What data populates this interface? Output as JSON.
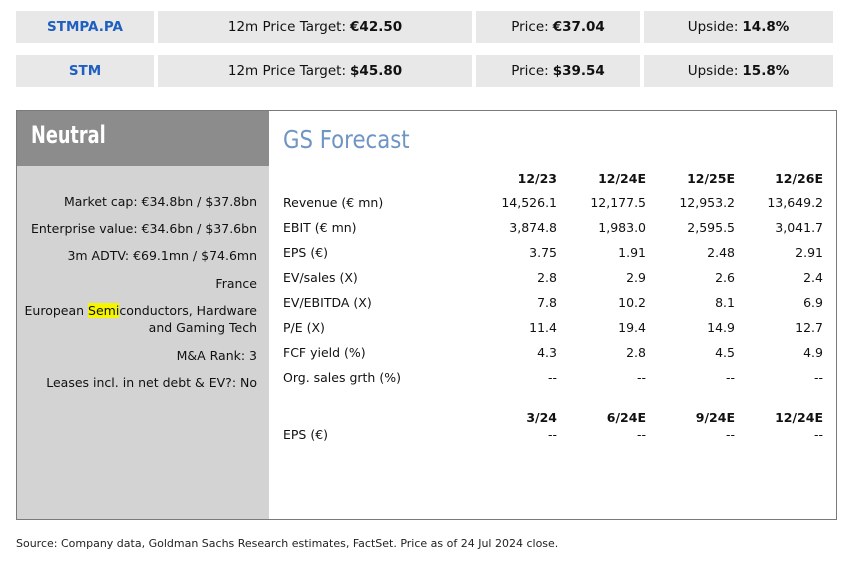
{
  "tickers": [
    {
      "symbol": "STMPA.PA",
      "target_label": "12m Price Target:",
      "target_value": "€42.50",
      "price_label": "Price:",
      "price_value": "€37.04",
      "upside_label": "Upside:",
      "upside_value": "14.8%"
    },
    {
      "symbol": "STM",
      "target_label": "12m Price Target:",
      "target_value": "$45.80",
      "price_label": "Price:",
      "price_value": "$39.54",
      "upside_label": "Upside:",
      "upside_value": "15.8%"
    }
  ],
  "rating": "Neutral",
  "meta": {
    "market_cap": "Market cap: €34.8bn / $37.8bn",
    "enterprise_value": "Enterprise value: €34.6bn / $37.6bn",
    "adtv": "3m ADTV: €69.1mn / $74.6mn",
    "country": "France",
    "sector_pre": "European ",
    "sector_highlight": "Semi",
    "sector_post": "conductors, Hardware",
    "sector_line2": "and Gaming Tech",
    "ma_rank": "M&A Rank: 3",
    "leases": "Leases incl. in net debt & EV?: No"
  },
  "forecast": {
    "title": "GS Forecast",
    "annual_headers": [
      "12/23",
      "12/24E",
      "12/25E",
      "12/26E"
    ],
    "annual_rows": [
      {
        "label": "Revenue (€ mn)",
        "values": [
          "14,526.1",
          "12,177.5",
          "12,953.2",
          "13,649.2"
        ]
      },
      {
        "label": "EBIT (€ mn)",
        "values": [
          "3,874.8",
          "1,983.0",
          "2,595.5",
          "3,041.7"
        ]
      },
      {
        "label": "EPS (€)",
        "values": [
          "3.75",
          "1.91",
          "2.48",
          "2.91"
        ]
      },
      {
        "label": "EV/sales (X)",
        "values": [
          "2.8",
          "2.9",
          "2.6",
          "2.4"
        ]
      },
      {
        "label": "EV/EBITDA (X)",
        "values": [
          "7.8",
          "10.2",
          "8.1",
          "6.9"
        ]
      },
      {
        "label": "P/E (X)",
        "values": [
          "11.4",
          "19.4",
          "14.9",
          "12.7"
        ]
      },
      {
        "label": "FCF yield (%)",
        "values": [
          "4.3",
          "2.8",
          "4.5",
          "4.9"
        ]
      },
      {
        "label": "Org. sales grth (%)",
        "values": [
          "--",
          "--",
          "--",
          "--"
        ]
      }
    ],
    "quarter_headers": [
      "3/24",
      "6/24E",
      "9/24E",
      "12/24E"
    ],
    "quarter_rows": [
      {
        "label": "EPS (€)",
        "values": [
          "--",
          "--",
          "--",
          "--"
        ]
      }
    ]
  },
  "source": "Source: Company data, Goldman Sachs Research estimates, FactSet. Price as of 24 Jul 2024 close."
}
